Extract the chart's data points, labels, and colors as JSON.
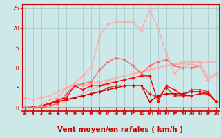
{
  "title": "",
  "xlabel": "Vent moyen/en rafales ( km/h )",
  "background_color": "#cce8e8",
  "grid_color": "#aacccc",
  "x": [
    0,
    1,
    2,
    3,
    4,
    5,
    6,
    7,
    8,
    9,
    10,
    11,
    12,
    13,
    14,
    15,
    16,
    17,
    18,
    19,
    20,
    21,
    22,
    23
  ],
  "series": [
    {
      "y": [
        0.2,
        0.2,
        0.2,
        0.5,
        1.0,
        1.5,
        2.5,
        3.5,
        4.5,
        5.5,
        6.5,
        7.5,
        8.0,
        8.5,
        9.0,
        9.5,
        10.0,
        10.5,
        10.8,
        11.0,
        11.2,
        11.3,
        11.4,
        11.5
      ],
      "color": "#ffaaaa",
      "linewidth": 1.0,
      "marker": null,
      "alpha": 1.0
    },
    {
      "y": [
        2.5,
        2.0,
        2.5,
        3.0,
        4.0,
        5.0,
        5.5,
        5.5,
        6.0,
        6.5,
        7.0,
        7.5,
        8.0,
        8.5,
        9.0,
        9.5,
        10.0,
        10.5,
        11.0,
        11.5,
        11.5,
        11.5,
        8.0,
        8.5
      ],
      "color": "#ffaaaa",
      "linewidth": 1.0,
      "marker": "D",
      "markersize": 2.0,
      "alpha": 1.0
    },
    {
      "y": [
        0.0,
        0.0,
        0.0,
        0.5,
        1.0,
        3.5,
        5.5,
        6.0,
        6.5,
        9.5,
        11.5,
        12.5,
        12.0,
        10.5,
        8.5,
        10.5,
        11.5,
        12.0,
        10.5,
        10.0,
        10.0,
        10.5,
        7.0,
        8.5
      ],
      "color": "#ff6666",
      "linewidth": 1.0,
      "marker": "D",
      "markersize": 2.0,
      "alpha": 1.0
    },
    {
      "y": [
        0.0,
        0.0,
        0.5,
        1.0,
        1.5,
        2.0,
        2.5,
        3.0,
        3.5,
        4.0,
        4.5,
        5.0,
        5.5,
        5.5,
        5.5,
        1.5,
        3.0,
        3.5,
        3.5,
        3.5,
        4.0,
        4.0,
        3.5,
        1.5
      ],
      "color": "#cc0000",
      "linewidth": 1.0,
      "marker": "D",
      "markersize": 2.0,
      "alpha": 1.0
    },
    {
      "y": [
        0.0,
        0.2,
        0.5,
        1.0,
        1.5,
        2.0,
        2.5,
        3.0,
        3.5,
        4.0,
        5.0,
        5.5,
        5.5,
        5.5,
        5.5,
        3.5,
        2.5,
        5.0,
        3.0,
        3.0,
        4.5,
        4.5,
        4.0,
        1.5
      ],
      "color": "#cc0000",
      "linewidth": 1.0,
      "marker": "D",
      "markersize": 2.0,
      "alpha": 0.7
    },
    {
      "y": [
        0.0,
        0.0,
        0.5,
        1.0,
        2.0,
        2.5,
        5.5,
        4.5,
        5.5,
        5.5,
        6.0,
        6.5,
        7.0,
        7.5,
        8.0,
        8.0,
        1.5,
        5.5,
        4.5,
        3.0,
        3.0,
        3.5,
        3.5,
        1.5
      ],
      "color": "#ff0000",
      "linewidth": 1.0,
      "marker": "D",
      "markersize": 2.0,
      "alpha": 1.0
    },
    {
      "y": [
        0.0,
        0.0,
        0.5,
        2.0,
        2.5,
        5.0,
        6.0,
        8.0,
        10.0,
        18.0,
        21.0,
        21.5,
        21.5,
        21.5,
        19.5,
        24.5,
        20.0,
        13.5,
        8.5,
        10.5,
        11.0,
        10.5,
        7.0,
        8.5
      ],
      "color": "#ffaaaa",
      "linewidth": 1.0,
      "marker": "D",
      "markersize": 2.0,
      "alpha": 1.0
    }
  ],
  "ylim": [
    0,
    26
  ],
  "xlim": [
    -0.3,
    23.3
  ],
  "yticks": [
    0,
    5,
    10,
    15,
    20,
    25
  ],
  "xticks": [
    0,
    1,
    2,
    3,
    4,
    5,
    6,
    7,
    8,
    9,
    10,
    11,
    12,
    13,
    14,
    15,
    16,
    17,
    18,
    19,
    20,
    21,
    22,
    23
  ],
  "tick_fontsize": 5.5,
  "label_fontsize": 7.5,
  "red_color": "#cc0000",
  "arrow_angles": [
    0,
    0,
    0,
    225,
    225,
    270,
    315,
    45,
    45,
    45,
    45,
    45,
    45,
    45,
    45,
    45,
    315,
    45,
    315,
    315,
    315,
    0,
    0,
    0
  ]
}
